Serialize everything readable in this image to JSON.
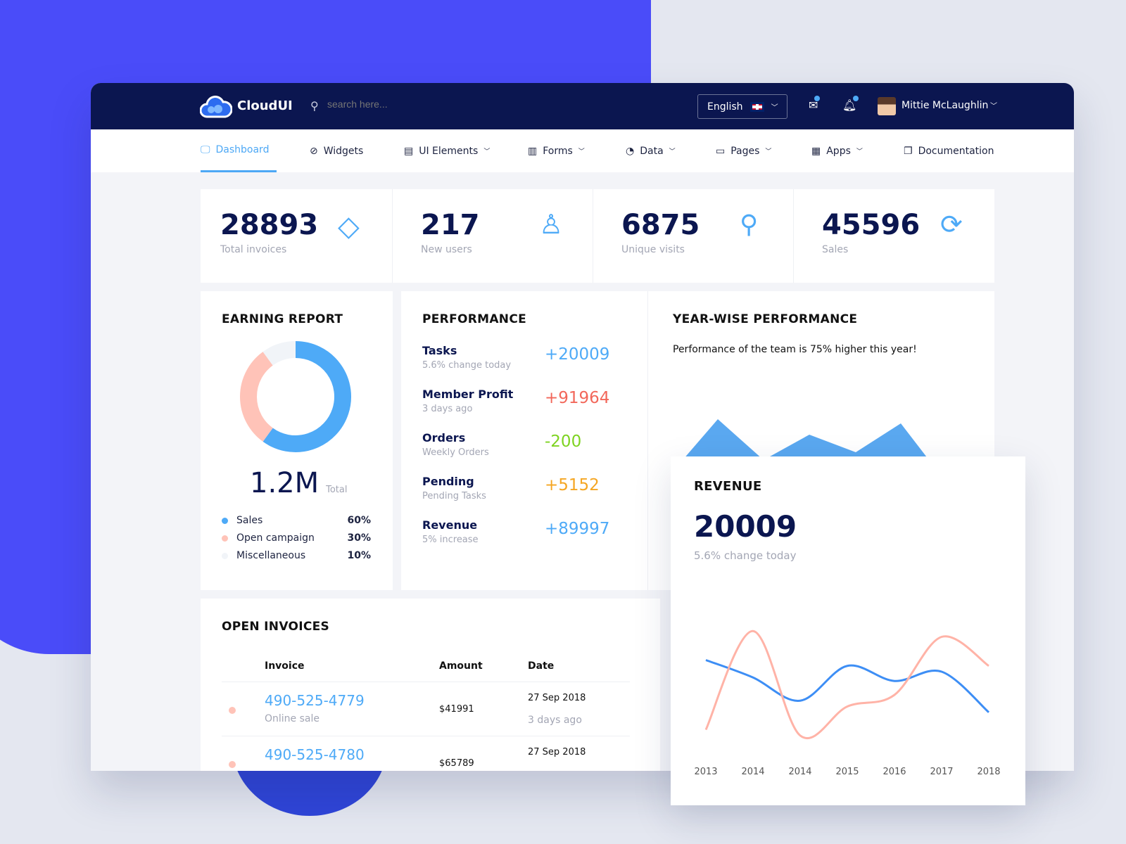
{
  "header": {
    "brand": "CloudUI",
    "search_placeholder": "search here...",
    "language": "English",
    "user_name": "Mittie McLaughlin"
  },
  "nav": [
    {
      "label": "Dashboard",
      "icon": "monitor-icon",
      "active": true
    },
    {
      "label": "Widgets",
      "icon": "globe-icon"
    },
    {
      "label": "UI Elements",
      "icon": "film-icon",
      "dropdown": true
    },
    {
      "label": "Forms",
      "icon": "book-icon",
      "dropdown": true
    },
    {
      "label": "Data",
      "icon": "pie-icon",
      "dropdown": true
    },
    {
      "label": "Pages",
      "icon": "folder-icon",
      "dropdown": true
    },
    {
      "label": "Apps",
      "icon": "grid-icon",
      "dropdown": true
    },
    {
      "label": "Documentation",
      "icon": "documents-icon"
    }
  ],
  "stats": [
    {
      "value": "28893",
      "label": "Total invoices",
      "icon": "layers-icon"
    },
    {
      "value": "217",
      "label": "New users",
      "icon": "user-icon"
    },
    {
      "value": "6875",
      "label": "Unique visits",
      "icon": "pin-icon"
    },
    {
      "value": "45596",
      "label": "Sales",
      "icon": "refresh-icon"
    }
  ],
  "earning": {
    "title": "EARNING REPORT",
    "total": "1.2M",
    "total_label": "Total",
    "legend": [
      {
        "label": "Sales",
        "pct": "60%",
        "value": 60,
        "color": "#4eaaf7"
      },
      {
        "label": "Open campaign",
        "pct": "30%",
        "value": 30,
        "color": "#ffc3b8"
      },
      {
        "label": "Miscellaneous",
        "pct": "10%",
        "value": 10,
        "color": "#f1f4f8"
      }
    ]
  },
  "performance": {
    "title": "PERFORMANCE",
    "items": [
      {
        "title": "Tasks",
        "sub": "5.6% change today",
        "value": "+20009",
        "color": "#4eaaf7"
      },
      {
        "title": "Member Profit",
        "sub": "3 days ago",
        "value": "+91964",
        "color": "#f2675a"
      },
      {
        "title": "Orders",
        "sub": "Weekly Orders",
        "value": "-200",
        "color": "#7ed321"
      },
      {
        "title": "Pending",
        "sub": "Pending Tasks",
        "value": "+5152",
        "color": "#f5a623"
      },
      {
        "title": "Revenue",
        "sub": "5% increase",
        "value": "+89997",
        "color": "#4eaaf7"
      }
    ]
  },
  "yearwise": {
    "title": "YEAR-WISE PERFORMANCE",
    "text": "Performance of the team is 75% higher this year!"
  },
  "revenue": {
    "title": "REVENUE",
    "value": "20009",
    "sub": "5.6% change today"
  },
  "chart_data": {
    "type": "line",
    "categories": [
      "2013",
      "2014",
      "2014",
      "2015",
      "2016",
      "2017",
      "2018"
    ],
    "series": [
      {
        "color": "#3d8ef5",
        "values": [
          70,
          55,
          35,
          65,
          52,
          60,
          25
        ]
      },
      {
        "color": "#ffb3a7",
        "values": [
          10,
          95,
          5,
          30,
          40,
          90,
          65
        ]
      }
    ],
    "ylim": [
      0,
      100
    ],
    "grid": false
  },
  "invoices": {
    "title": "OPEN INVOICES",
    "columns": [
      "Invoice",
      "Amount",
      "Date"
    ],
    "rows": [
      {
        "invoice": "490-525-4779",
        "sub": "Online sale",
        "amount": "$41991",
        "date": "27 Sep 2018",
        "ago": "3 days ago"
      },
      {
        "invoice": "490-525-4780",
        "amount": "$65789",
        "date": "27 Sep 2018"
      }
    ]
  }
}
